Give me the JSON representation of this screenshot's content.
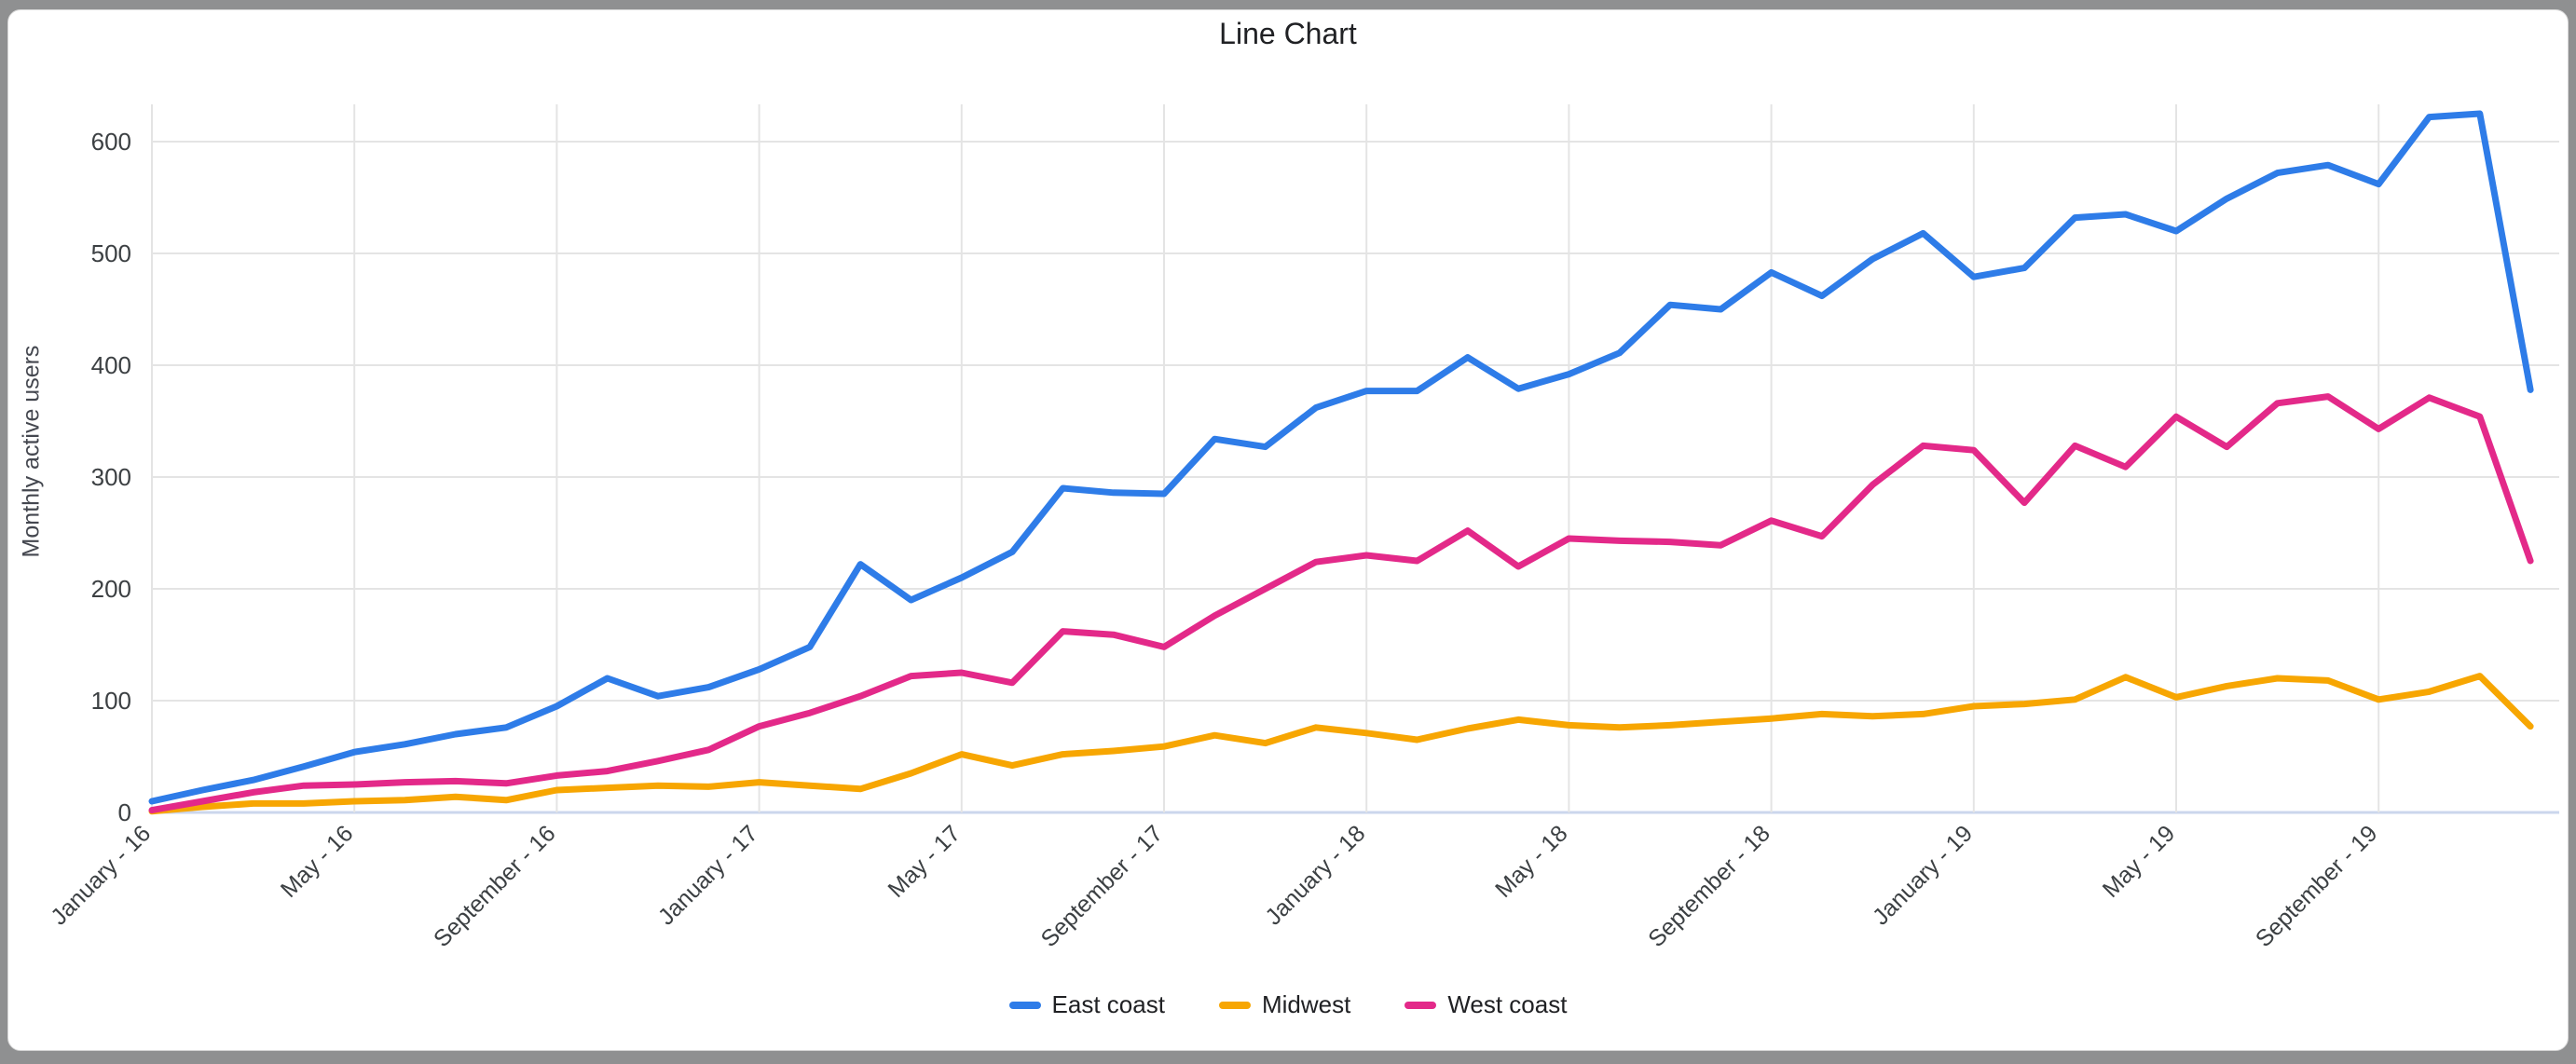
{
  "window": {
    "surround_color": "#8f9091",
    "card_color": "#ffffff"
  },
  "chart_data": {
    "type": "line",
    "title": "Line Chart",
    "xlabel": "",
    "ylabel": "Monthly active users",
    "ylim": [
      0,
      633
    ],
    "yticks": [
      0,
      100,
      200,
      300,
      400,
      500,
      600
    ],
    "x_tick_every": 4,
    "grid": true,
    "legend_position": "bottom",
    "colors": {
      "grid_line": "#e4e4e4",
      "zero_baseline": "#cbd6ec",
      "tick_text": "#3c4043",
      "title_text": "#202124"
    },
    "categories": [
      "January - 16",
      "February - 16",
      "March - 16",
      "April - 16",
      "May - 16",
      "June - 16",
      "July - 16",
      "August - 16",
      "September - 16",
      "October - 16",
      "November - 16",
      "December - 16",
      "January - 17",
      "February - 17",
      "March - 17",
      "April - 17",
      "May - 17",
      "June - 17",
      "July - 17",
      "August - 17",
      "September - 17",
      "October - 17",
      "November - 17",
      "December - 17",
      "January - 18",
      "February - 18",
      "March - 18",
      "April - 18",
      "May - 18",
      "June - 18",
      "July - 18",
      "August - 18",
      "September - 18",
      "October - 18",
      "November - 18",
      "December - 18",
      "January - 19",
      "February - 19",
      "March - 19",
      "April - 19",
      "May - 19",
      "June - 19",
      "July - 19",
      "August - 19",
      "September - 19",
      "October - 19",
      "November - 19",
      "December - 19"
    ],
    "series": [
      {
        "name": "East coast",
        "color": "#2e7ce8",
        "values": [
          10,
          20,
          29,
          41,
          54,
          61,
          70,
          76,
          95,
          120,
          104,
          112,
          128,
          148,
          222,
          190,
          210,
          233,
          290,
          286,
          285,
          334,
          327,
          362,
          377,
          377,
          407,
          379,
          392,
          411,
          454,
          450,
          483,
          462,
          495,
          518,
          479,
          487,
          532,
          535,
          520,
          549,
          572,
          579,
          562,
          622,
          625,
          378
        ]
      },
      {
        "name": "Midwest",
        "color": "#f7a602",
        "values": [
          1,
          5,
          8,
          8,
          10,
          11,
          14,
          11,
          20,
          22,
          24,
          23,
          27,
          24,
          21,
          35,
          52,
          42,
          52,
          55,
          59,
          69,
          62,
          76,
          71,
          65,
          75,
          83,
          78,
          76,
          78,
          81,
          84,
          88,
          86,
          88,
          95,
          97,
          101,
          121,
          103,
          113,
          120,
          118,
          101,
          108,
          122,
          77
        ]
      },
      {
        "name": "West coast",
        "color": "#e32989",
        "values": [
          2,
          10,
          18,
          24,
          25,
          27,
          28,
          26,
          33,
          37,
          46,
          56,
          77,
          89,
          104,
          122,
          125,
          116,
          162,
          159,
          148,
          176,
          200,
          224,
          230,
          225,
          252,
          220,
          245,
          243,
          242,
          239,
          261,
          247,
          293,
          328,
          324,
          277,
          328,
          309,
          354,
          327,
          366,
          372,
          343,
          371,
          354,
          225
        ]
      }
    ]
  }
}
